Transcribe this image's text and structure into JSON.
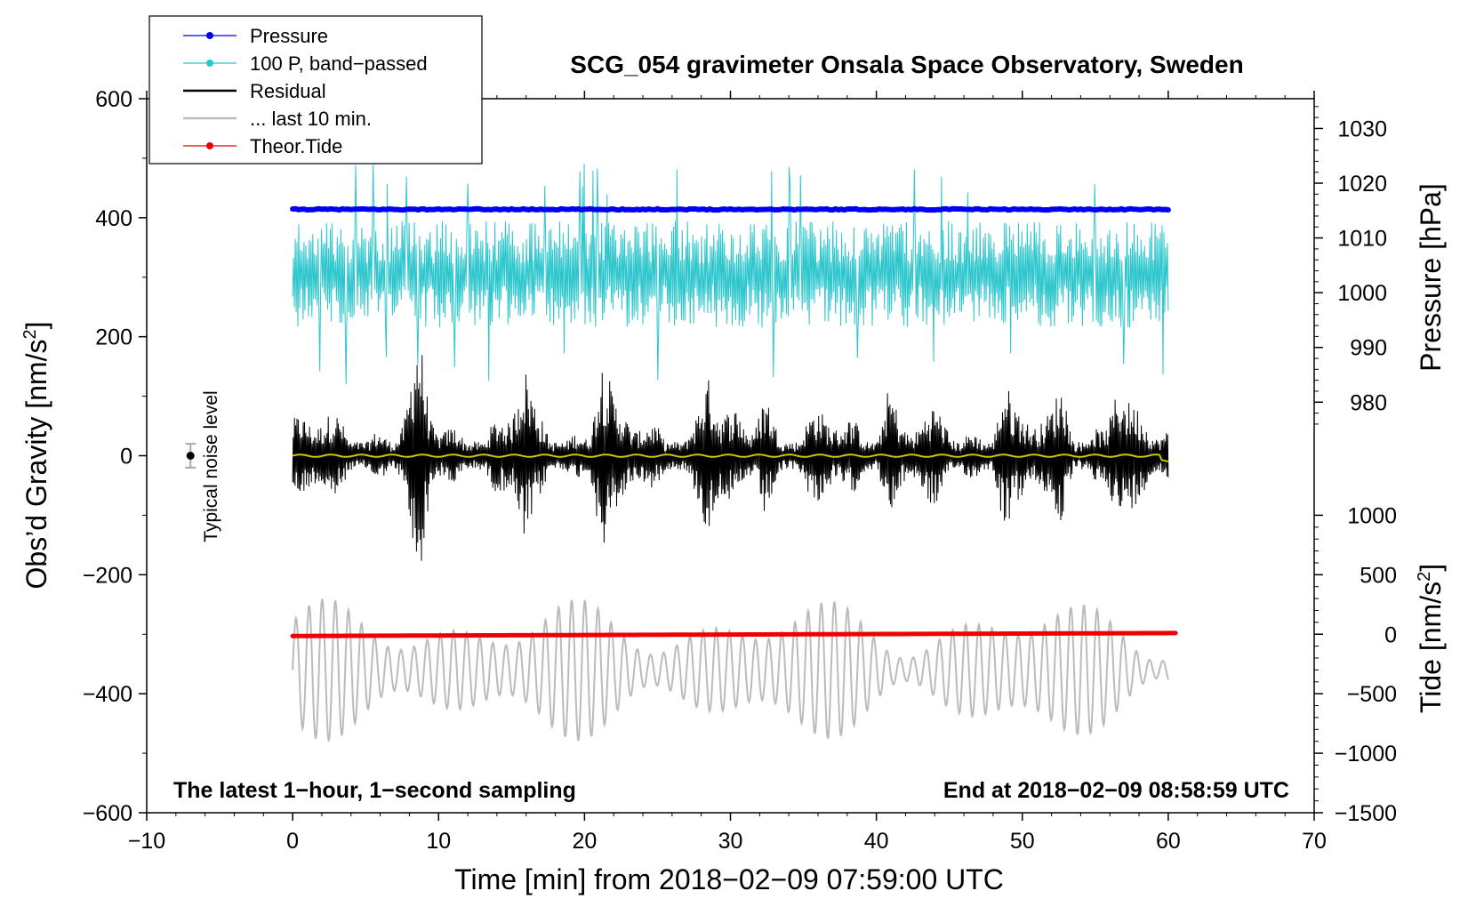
{
  "chart_data": {
    "type": "line",
    "title": "SCG_054 gravimeter Onsala Space Observatory, Sweden",
    "xlabel": "Time [min] from 2018−02−09 07:59:00 UTC",
    "ylabel_left": "Obs’d Gravity [nm/s",
    "ylabel_left_sup": "2",
    "ylabel_left_close": "]",
    "ylabel_right_pressure": "Pressure [hPa]",
    "ylabel_right_tide": "Tide [nm/s",
    "ylabel_right_tide_sup": "2",
    "ylabel_right_tide_close": "]",
    "xlim": [
      -10,
      70
    ],
    "ylim": [
      -600,
      600
    ],
    "x_ticks": [
      -10,
      0,
      10,
      20,
      30,
      40,
      50,
      60,
      70
    ],
    "x_tick_labels": [
      "−10",
      "0",
      "10",
      "20",
      "30",
      "40",
      "50",
      "60",
      "70"
    ],
    "y_ticks": [
      600,
      400,
      200,
      0,
      -200,
      -400,
      -600
    ],
    "y_tick_labels": [
      "600",
      "400",
      "200",
      "0",
      "−200",
      "−400",
      "−600"
    ],
    "y_minor_ticks": [
      500,
      300,
      100,
      -100,
      -300,
      -500
    ],
    "pressure_axis": {
      "ticks": [
        1030,
        1020,
        1010,
        1000,
        990,
        980
      ],
      "tick_labels": [
        "1030",
        "1020",
        "1010",
        "1000",
        "990",
        "980"
      ],
      "gravity_at_980": 90,
      "gravity_per_hpa": 9.2
    },
    "tide_axis": {
      "ticks": [
        1000,
        500,
        0,
        -500,
        -1000,
        -1500
      ],
      "tick_labels": [
        "1000",
        "500",
        "0",
        "−500",
        "−1000",
        "−1500"
      ],
      "gravity_at_0": -300,
      "gravity_per_unit": 0.2
    },
    "legend": [
      {
        "label": "Pressure",
        "color": "#0000ee",
        "style": "line-dot"
      },
      {
        "label": "100 P, band−passed",
        "color": "#2cc6cc",
        "style": "line-dot"
      },
      {
        "label": "Residual",
        "color": "#000000",
        "style": "line"
      },
      {
        "label": "... last 10 min.",
        "color": "#bbbbbb",
        "style": "line"
      },
      {
        "label": "Theor.Tide",
        "color": "#ee0000",
        "style": "line-dot"
      }
    ],
    "series": [
      {
        "name": "Pressure",
        "color": "#0000ee",
        "x_range": [
          0,
          60
        ],
        "y_gravity_units": 414,
        "approx_hpa": 1015
      },
      {
        "name": "100 P, band-passed",
        "color": "#2cc6cc",
        "x_range": [
          0,
          60
        ],
        "center": 305,
        "amplitude": 90
      },
      {
        "name": "Residual",
        "color": "#000000",
        "x_range": [
          0,
          60
        ],
        "center": 0,
        "amplitude": 95
      },
      {
        "name": "Residual mean",
        "color": "#c8c80a",
        "x_range": [
          0,
          60
        ],
        "center": 0
      },
      {
        "name": "... last 10 min.",
        "color": "#bbbbbb",
        "x_range": [
          0,
          60
        ],
        "center": -360,
        "amplitude": 120
      },
      {
        "name": "Theor.Tide",
        "color": "#ee0000",
        "x_range": [
          0,
          60.5
        ],
        "y_start": -303,
        "y_end": -298
      }
    ],
    "noise_marker": {
      "x": -7,
      "y": 0,
      "err": 20,
      "label": "Typical noise level"
    },
    "note_left": "The latest 1−hour, 1−second sampling",
    "note_right": "End at 2018−02−09 08:58:59 UTC"
  }
}
